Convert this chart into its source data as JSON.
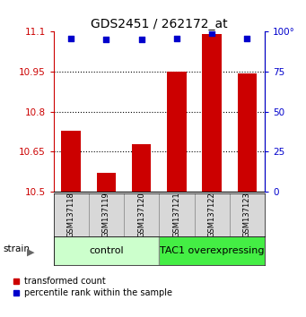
{
  "title": "GDS2451 / 262172_at",
  "samples": [
    "GSM137118",
    "GSM137119",
    "GSM137120",
    "GSM137121",
    "GSM137122",
    "GSM137123"
  ],
  "transformed_counts": [
    10.73,
    10.57,
    10.68,
    10.95,
    11.09,
    10.945
  ],
  "percentile_ranks": [
    96,
    95,
    95,
    96,
    99,
    96
  ],
  "ylim_left": [
    10.5,
    11.1
  ],
  "ylim_right": [
    0,
    100
  ],
  "yticks_left": [
    10.5,
    10.65,
    10.8,
    10.95,
    11.1
  ],
  "yticks_right": [
    0,
    25,
    50,
    75,
    100
  ],
  "grid_lines": [
    10.65,
    10.8,
    10.95
  ],
  "bar_color": "#cc0000",
  "dot_color": "#0000cc",
  "bar_width": 0.55,
  "groups": [
    {
      "label": "control",
      "indices": [
        0,
        1,
        2
      ],
      "color": "#ccffcc"
    },
    {
      "label": "TAC1 overexpressing",
      "indices": [
        3,
        4,
        5
      ],
      "color": "#44ee44"
    }
  ],
  "strain_label": "strain",
  "legend_bar_label": "transformed count",
  "legend_dot_label": "percentile rank within the sample",
  "left_tick_color": "#cc0000",
  "right_tick_color": "#0000cc",
  "title_fontsize": 10,
  "tick_fontsize": 7.5,
  "sample_fontsize": 6,
  "group_fontsize": 8
}
